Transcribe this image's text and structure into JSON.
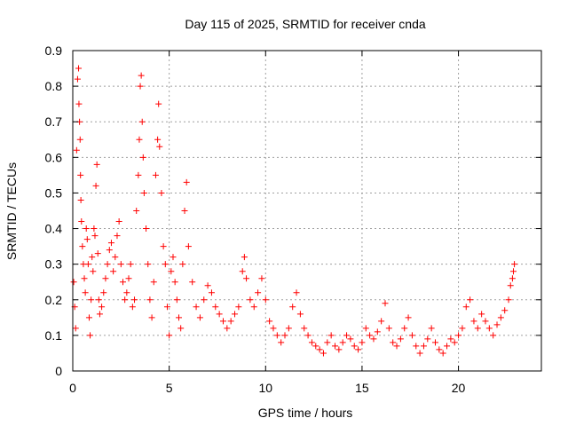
{
  "chart_data": {
    "type": "scatter",
    "title": "Day 115 of 2025, SRMTID for receiver cnda",
    "xlabel": "GPS time / hours",
    "ylabel": "SRMTID / TECUs",
    "xlim": [
      0,
      24.3
    ],
    "ylim": [
      0,
      0.9
    ],
    "xticks": [
      0,
      5,
      10,
      15,
      20
    ],
    "yticks": [
      0,
      0.1,
      0.2,
      0.3,
      0.4,
      0.5,
      0.6,
      0.7,
      0.8,
      0.9
    ],
    "xtick_labels": [
      "0",
      "5",
      "10",
      "15",
      "20"
    ],
    "ytick_labels": [
      "0",
      "0.1",
      "0.2",
      "0.3",
      "0.4",
      "0.5",
      "0.6",
      "0.7",
      "0.8",
      "0.9"
    ],
    "grid": true,
    "marker": "plus",
    "color": "#ff0000",
    "series": [
      {
        "name": "SRMTID",
        "points": [
          [
            0.05,
            0.25
          ],
          [
            0.1,
            0.18
          ],
          [
            0.15,
            0.12
          ],
          [
            0.2,
            0.62
          ],
          [
            0.25,
            0.82
          ],
          [
            0.3,
            0.85
          ],
          [
            0.32,
            0.75
          ],
          [
            0.35,
            0.7
          ],
          [
            0.38,
            0.65
          ],
          [
            0.4,
            0.55
          ],
          [
            0.42,
            0.48
          ],
          [
            0.45,
            0.42
          ],
          [
            0.5,
            0.35
          ],
          [
            0.55,
            0.3
          ],
          [
            0.6,
            0.26
          ],
          [
            0.65,
            0.22
          ],
          [
            0.7,
            0.4
          ],
          [
            0.75,
            0.37
          ],
          [
            0.8,
            0.3
          ],
          [
            0.85,
            0.15
          ],
          [
            0.9,
            0.1
          ],
          [
            0.95,
            0.2
          ],
          [
            1.0,
            0.32
          ],
          [
            1.05,
            0.28
          ],
          [
            1.1,
            0.4
          ],
          [
            1.15,
            0.38
          ],
          [
            1.2,
            0.52
          ],
          [
            1.25,
            0.58
          ],
          [
            1.3,
            0.33
          ],
          [
            1.35,
            0.2
          ],
          [
            1.4,
            0.16
          ],
          [
            1.5,
            0.18
          ],
          [
            1.6,
            0.22
          ],
          [
            1.7,
            0.26
          ],
          [
            1.8,
            0.3
          ],
          [
            1.9,
            0.34
          ],
          [
            2.0,
            0.36
          ],
          [
            2.1,
            0.28
          ],
          [
            2.2,
            0.32
          ],
          [
            2.3,
            0.38
          ],
          [
            2.4,
            0.42
          ],
          [
            2.5,
            0.3
          ],
          [
            2.6,
            0.25
          ],
          [
            2.7,
            0.2
          ],
          [
            2.8,
            0.22
          ],
          [
            2.9,
            0.26
          ],
          [
            3.0,
            0.3
          ],
          [
            3.1,
            0.18
          ],
          [
            3.2,
            0.2
          ],
          [
            3.3,
            0.45
          ],
          [
            3.4,
            0.55
          ],
          [
            3.45,
            0.65
          ],
          [
            3.5,
            0.8
          ],
          [
            3.55,
            0.83
          ],
          [
            3.6,
            0.7
          ],
          [
            3.65,
            0.6
          ],
          [
            3.7,
            0.5
          ],
          [
            3.8,
            0.4
          ],
          [
            3.9,
            0.3
          ],
          [
            4.0,
            0.2
          ],
          [
            4.1,
            0.15
          ],
          [
            4.2,
            0.25
          ],
          [
            4.3,
            0.55
          ],
          [
            4.4,
            0.65
          ],
          [
            4.45,
            0.75
          ],
          [
            4.5,
            0.63
          ],
          [
            4.6,
            0.5
          ],
          [
            4.7,
            0.35
          ],
          [
            4.8,
            0.3
          ],
          [
            4.9,
            0.18
          ],
          [
            5.0,
            0.1
          ],
          [
            5.1,
            0.28
          ],
          [
            5.2,
            0.32
          ],
          [
            5.3,
            0.25
          ],
          [
            5.4,
            0.2
          ],
          [
            5.5,
            0.15
          ],
          [
            5.6,
            0.12
          ],
          [
            5.7,
            0.3
          ],
          [
            5.8,
            0.45
          ],
          [
            5.9,
            0.53
          ],
          [
            6.0,
            0.35
          ],
          [
            6.2,
            0.25
          ],
          [
            6.4,
            0.18
          ],
          [
            6.6,
            0.15
          ],
          [
            6.8,
            0.2
          ],
          [
            7.0,
            0.24
          ],
          [
            7.2,
            0.22
          ],
          [
            7.4,
            0.18
          ],
          [
            7.6,
            0.16
          ],
          [
            7.8,
            0.14
          ],
          [
            8.0,
            0.12
          ],
          [
            8.2,
            0.14
          ],
          [
            8.4,
            0.16
          ],
          [
            8.6,
            0.18
          ],
          [
            8.8,
            0.28
          ],
          [
            8.9,
            0.32
          ],
          [
            9.0,
            0.26
          ],
          [
            9.2,
            0.2
          ],
          [
            9.4,
            0.18
          ],
          [
            9.6,
            0.22
          ],
          [
            9.8,
            0.26
          ],
          [
            10.0,
            0.2
          ],
          [
            10.2,
            0.14
          ],
          [
            10.4,
            0.12
          ],
          [
            10.6,
            0.1
          ],
          [
            10.8,
            0.08
          ],
          [
            11.0,
            0.1
          ],
          [
            11.2,
            0.12
          ],
          [
            11.4,
            0.18
          ],
          [
            11.6,
            0.22
          ],
          [
            11.8,
            0.16
          ],
          [
            12.0,
            0.12
          ],
          [
            12.2,
            0.1
          ],
          [
            12.4,
            0.08
          ],
          [
            12.6,
            0.07
          ],
          [
            12.8,
            0.06
          ],
          [
            13.0,
            0.05
          ],
          [
            13.2,
            0.08
          ],
          [
            13.4,
            0.1
          ],
          [
            13.6,
            0.07
          ],
          [
            13.8,
            0.06
          ],
          [
            14.0,
            0.08
          ],
          [
            14.2,
            0.1
          ],
          [
            14.4,
            0.09
          ],
          [
            14.6,
            0.07
          ],
          [
            14.8,
            0.06
          ],
          [
            15.0,
            0.08
          ],
          [
            15.2,
            0.12
          ],
          [
            15.4,
            0.1
          ],
          [
            15.6,
            0.09
          ],
          [
            15.8,
            0.11
          ],
          [
            16.0,
            0.14
          ],
          [
            16.2,
            0.19
          ],
          [
            16.4,
            0.12
          ],
          [
            16.6,
            0.08
          ],
          [
            16.8,
            0.07
          ],
          [
            17.0,
            0.09
          ],
          [
            17.2,
            0.12
          ],
          [
            17.4,
            0.15
          ],
          [
            17.6,
            0.1
          ],
          [
            17.8,
            0.07
          ],
          [
            18.0,
            0.05
          ],
          [
            18.2,
            0.07
          ],
          [
            18.4,
            0.09
          ],
          [
            18.6,
            0.12
          ],
          [
            18.8,
            0.08
          ],
          [
            19.0,
            0.06
          ],
          [
            19.2,
            0.05
          ],
          [
            19.4,
            0.07
          ],
          [
            19.6,
            0.09
          ],
          [
            19.8,
            0.08
          ],
          [
            20.0,
            0.1
          ],
          [
            20.2,
            0.12
          ],
          [
            20.4,
            0.18
          ],
          [
            20.6,
            0.2
          ],
          [
            20.8,
            0.14
          ],
          [
            21.0,
            0.12
          ],
          [
            21.2,
            0.16
          ],
          [
            21.4,
            0.14
          ],
          [
            21.6,
            0.12
          ],
          [
            21.8,
            0.1
          ],
          [
            22.0,
            0.13
          ],
          [
            22.2,
            0.15
          ],
          [
            22.4,
            0.17
          ],
          [
            22.6,
            0.2
          ],
          [
            22.7,
            0.24
          ],
          [
            22.8,
            0.26
          ],
          [
            22.85,
            0.28
          ],
          [
            22.9,
            0.3
          ]
        ]
      }
    ]
  }
}
